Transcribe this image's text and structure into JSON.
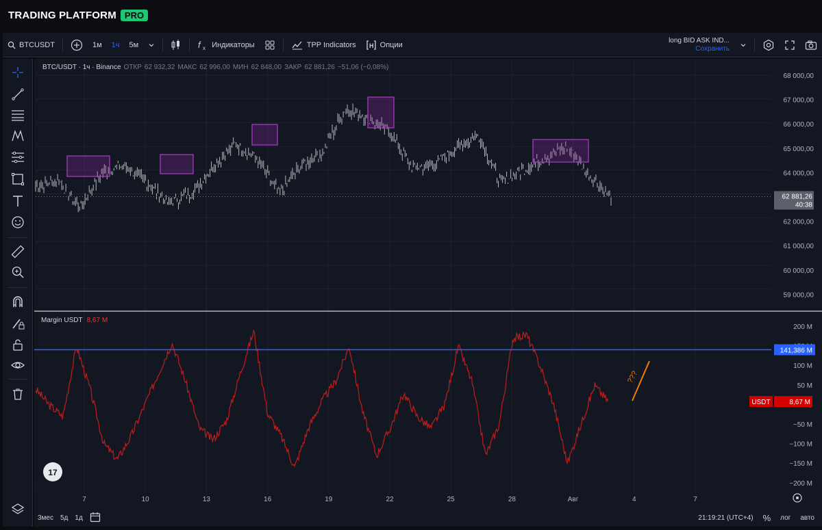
{
  "brand": {
    "name": "TRADING PLATFORM",
    "badge": "PRO"
  },
  "toolbar": {
    "symbol": "BTCUSDT",
    "intervals": [
      "1м",
      "1ч",
      "5м"
    ],
    "active_interval": "1ч",
    "indicators_label": "Индикаторы",
    "tpp_label": "TPP Indicators",
    "options_label": "Опции",
    "layout_name": "long BID ASK IND...",
    "layout_save": "Сохранить"
  },
  "legend": {
    "pair": "BTC/USDT · 1ч · Binance",
    "open_label": "ОТКР",
    "open": "62 932,32",
    "high_label": "МАКС",
    "high": "62 996,00",
    "low_label": "МИН",
    "low": "62 848,00",
    "close_label": "ЗАКР",
    "close": "62 881,26",
    "change": "−51,06 (−0,08%)"
  },
  "price_axis": {
    "labels": [
      "68 000,00",
      "67 000,00",
      "66 000,00",
      "65 000,00",
      "64 000,00",
      "63 000,00",
      "62 000,00",
      "61 000,00",
      "60 000,00",
      "59 000,00"
    ],
    "current_price": "62 881,26",
    "countdown": "40:38"
  },
  "indicator": {
    "name": "Margin USDT",
    "value": "8,67 M",
    "axis_labels": [
      "200 M",
      "150 M",
      "100 M",
      "50 M",
      "0",
      "−50 M",
      "−100 M",
      "−150 M",
      "−200 M"
    ],
    "hline_label": "141,386 M",
    "tag_label": "USDT",
    "tag_value": "8,67 M",
    "annotation": "???"
  },
  "time_axis": {
    "labels": [
      "7",
      "10",
      "13",
      "16",
      "19",
      "22",
      "25",
      "28",
      "Авг",
      "4",
      "7"
    ]
  },
  "bottom": {
    "ranges": [
      "3мес",
      "5д",
      "1д"
    ],
    "clock": "21:19:21 (UTC+4)",
    "percent": "%",
    "log": "лог",
    "auto": "авто"
  },
  "colors": {
    "background": "#131722",
    "accent": "#2962ff",
    "indicator_line": "#b71c1c",
    "hline": "#2962ff",
    "box": "#9c27b0",
    "annotation": "#f57c00",
    "brand_badge": "#1ec771"
  },
  "chart_data": [
    {
      "type": "candlestick",
      "title": "BTC/USDT · 1ч · Binance",
      "x": [
        "7",
        "10",
        "13",
        "16",
        "19",
        "22",
        "25",
        "28",
        "Авг"
      ],
      "close_series": [
        63300,
        63600,
        62400,
        63900,
        64200,
        63500,
        62600,
        63000,
        64100,
        65100,
        64500,
        63000,
        64200,
        64800,
        66600,
        66200,
        65600,
        64100,
        64200,
        64900,
        65500,
        63500,
        64000,
        64500,
        65000,
        63800,
        62881
      ],
      "ylim": [
        58500,
        68500
      ],
      "boxes": [
        {
          "label": "",
          "x_from": "7",
          "x_to": "8",
          "y_from": 63900,
          "y_to": 64700
        },
        {
          "label": "",
          "x_from": "11",
          "x_to": "12",
          "y_from": 64000,
          "y_to": 64800
        },
        {
          "label": "",
          "x_from": "16",
          "x_to": "16",
          "y_from": 65100,
          "y_to": 65950
        },
        {
          "label": "",
          "x_from": "21",
          "x_to": "22",
          "y_from": 65850,
          "y_to": 67100
        },
        {
          "label": "",
          "x_from": "29",
          "x_to": "31",
          "y_from": 64450,
          "y_to": 65400
        }
      ]
    },
    {
      "type": "line",
      "title": "Margin USDT",
      "series": [
        {
          "name": "Margin USDT",
          "values": [
            40,
            0,
            -30,
            150,
            40,
            -100,
            -140,
            -80,
            0,
            80,
            160,
            60,
            -60,
            -90,
            -40,
            80,
            190,
            -20,
            -80,
            -160,
            -60,
            10,
            60,
            150,
            -20,
            -130,
            -60,
            30,
            -30,
            -60,
            0,
            150,
            60,
            -130,
            -50,
            170,
            180,
            100,
            0,
            -150,
            -50,
            50,
            8.67
          ]
        }
      ],
      "ylim": [
        -210,
        220
      ],
      "hline": 141.386
    }
  ]
}
